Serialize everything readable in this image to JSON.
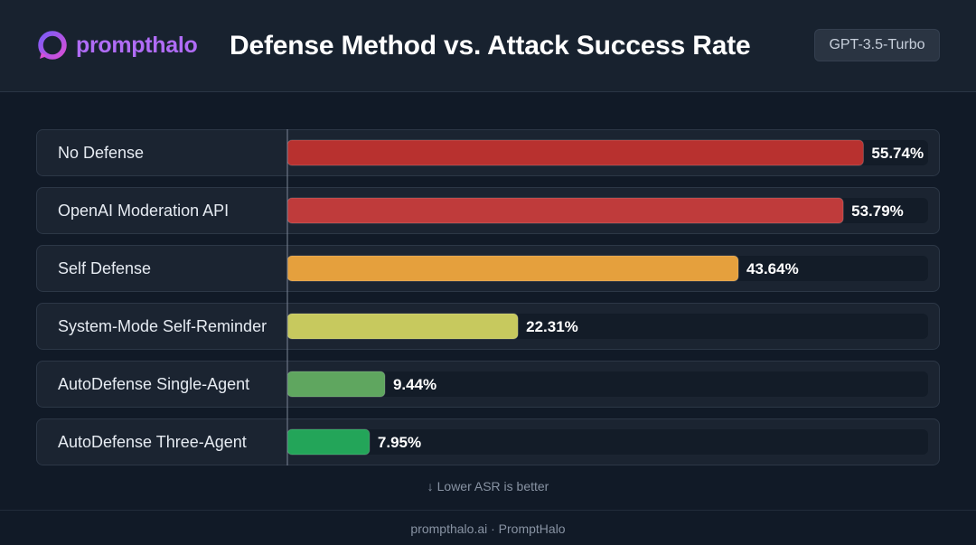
{
  "brand": {
    "name": "prompthalo"
  },
  "header": {
    "model_badge": "GPT-3.5-Turbo"
  },
  "chart_data": {
    "type": "bar",
    "orientation": "horizontal",
    "title": "Defense Method vs. Attack Success Rate",
    "xlabel": "",
    "ylabel": "",
    "xlim": [
      0,
      62
    ],
    "grid": false,
    "categories": [
      "No Defense",
      "OpenAI Moderation API",
      "Self Defense",
      "System-Mode Self-Reminder",
      "AutoDefense Single-Agent",
      "AutoDefense Three-Agent"
    ],
    "values": [
      55.74,
      53.79,
      43.64,
      22.31,
      9.44,
      7.95
    ],
    "value_labels": [
      "55.74%",
      "53.79%",
      "43.64%",
      "22.31%",
      "9.44%",
      "7.95%"
    ],
    "colors": [
      "#b8312f",
      "#bf3b3b",
      "#e5a03d",
      "#c7c95e",
      "#5fa65f",
      "#23a559"
    ]
  },
  "notes": {
    "better": "Lower ASR is better"
  },
  "footer": {
    "text": "prompthalo.ai · PromptHalo"
  }
}
